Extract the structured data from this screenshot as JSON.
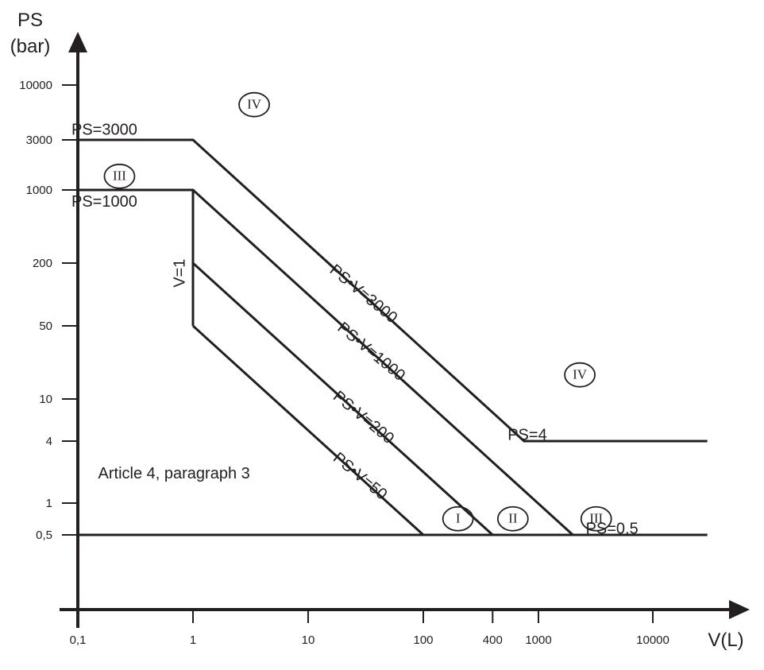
{
  "chart_data": {
    "type": "line",
    "title": "",
    "xlabel": "V(L)",
    "ylabel_line1": "PS",
    "ylabel_line2": "(bar)",
    "x_scale": "log",
    "y_scale": "log",
    "xlim": [
      0.1,
      30000
    ],
    "ylim": [
      0.5,
      10000
    ],
    "grid": false,
    "x_ticks": [
      {
        "value": 0.1,
        "label": "0,1"
      },
      {
        "value": 1,
        "label": "1"
      },
      {
        "value": 10,
        "label": "10"
      },
      {
        "value": 100,
        "label": "100"
      },
      {
        "value": 400,
        "label": "400"
      },
      {
        "value": 1000,
        "label": "1000"
      },
      {
        "value": 10000,
        "label": "10000"
      }
    ],
    "y_ticks": [
      {
        "value": 10000,
        "label": "10000"
      },
      {
        "value": 3000,
        "label": "3000"
      },
      {
        "value": 1000,
        "label": "1000"
      },
      {
        "value": 200,
        "label": "200"
      },
      {
        "value": 50,
        "label": "50"
      },
      {
        "value": 10,
        "label": "10"
      },
      {
        "value": 4,
        "label": "4"
      },
      {
        "value": 1,
        "label": "1"
      },
      {
        "value": 0.5,
        "label": "0,5"
      }
    ],
    "series": [
      {
        "name": "PS=3000 / PS•V=3000 / PS=4",
        "points": [
          [
            0.1,
            3000
          ],
          [
            1,
            3000
          ],
          [
            750,
            4
          ],
          [
            30000,
            4
          ]
        ]
      },
      {
        "name": "PS=1000 / PS•V=1000",
        "points": [
          [
            0.1,
            1000
          ],
          [
            1,
            1000
          ],
          [
            2000,
            0.5
          ]
        ]
      },
      {
        "name": "V=1",
        "points": [
          [
            1,
            1000
          ],
          [
            1,
            50
          ]
        ]
      },
      {
        "name": "PS•V=200",
        "points": [
          [
            1,
            200
          ],
          [
            400,
            0.5
          ]
        ]
      },
      {
        "name": "PS•V=50",
        "points": [
          [
            1,
            50
          ],
          [
            100,
            0.5
          ]
        ]
      },
      {
        "name": "PS=0,5",
        "points": [
          [
            0.1,
            0.5
          ],
          [
            30000,
            0.5
          ]
        ]
      }
    ],
    "line_labels": [
      {
        "text": "PS=3000",
        "x": 0.17,
        "y": 3700,
        "rotate": 0
      },
      {
        "text": "PS=1000",
        "x": 0.17,
        "y": 760,
        "rotate": 0
      },
      {
        "text": "PS•V=3000",
        "x": 30,
        "y": 100,
        "rotate": 39.5
      },
      {
        "text": "PS•V=1000",
        "x": 35,
        "y": 28,
        "rotate": 39.5
      },
      {
        "text": "PS•V=200",
        "x": 30,
        "y": 6.6,
        "rotate": 39.5
      },
      {
        "text": "PS•V=50",
        "x": 28,
        "y": 1.8,
        "rotate": 39.5
      },
      {
        "text": "V=1",
        "x": 0.78,
        "y": 160,
        "rotate": -90
      },
      {
        "text": "PS=4",
        "x": 800,
        "y": 4.5,
        "rotate": 0
      },
      {
        "text": "PS=0,5",
        "x": 4400,
        "y": 0.56,
        "rotate": 0
      }
    ],
    "category_labels": [
      {
        "text": "IV",
        "x": 3.4,
        "y": 6500
      },
      {
        "text": "III",
        "x": 0.23,
        "y": 1350
      },
      {
        "text": "IV",
        "x": 2300,
        "y": 17
      },
      {
        "text": "I",
        "x": 200,
        "y": 0.71
      },
      {
        "text": "II",
        "x": 600,
        "y": 0.71
      },
      {
        "text": "III",
        "x": 3200,
        "y": 0.71
      }
    ],
    "annotation": {
      "text": "Article 4, paragraph 3",
      "x": 0.15,
      "y": 2
    }
  }
}
